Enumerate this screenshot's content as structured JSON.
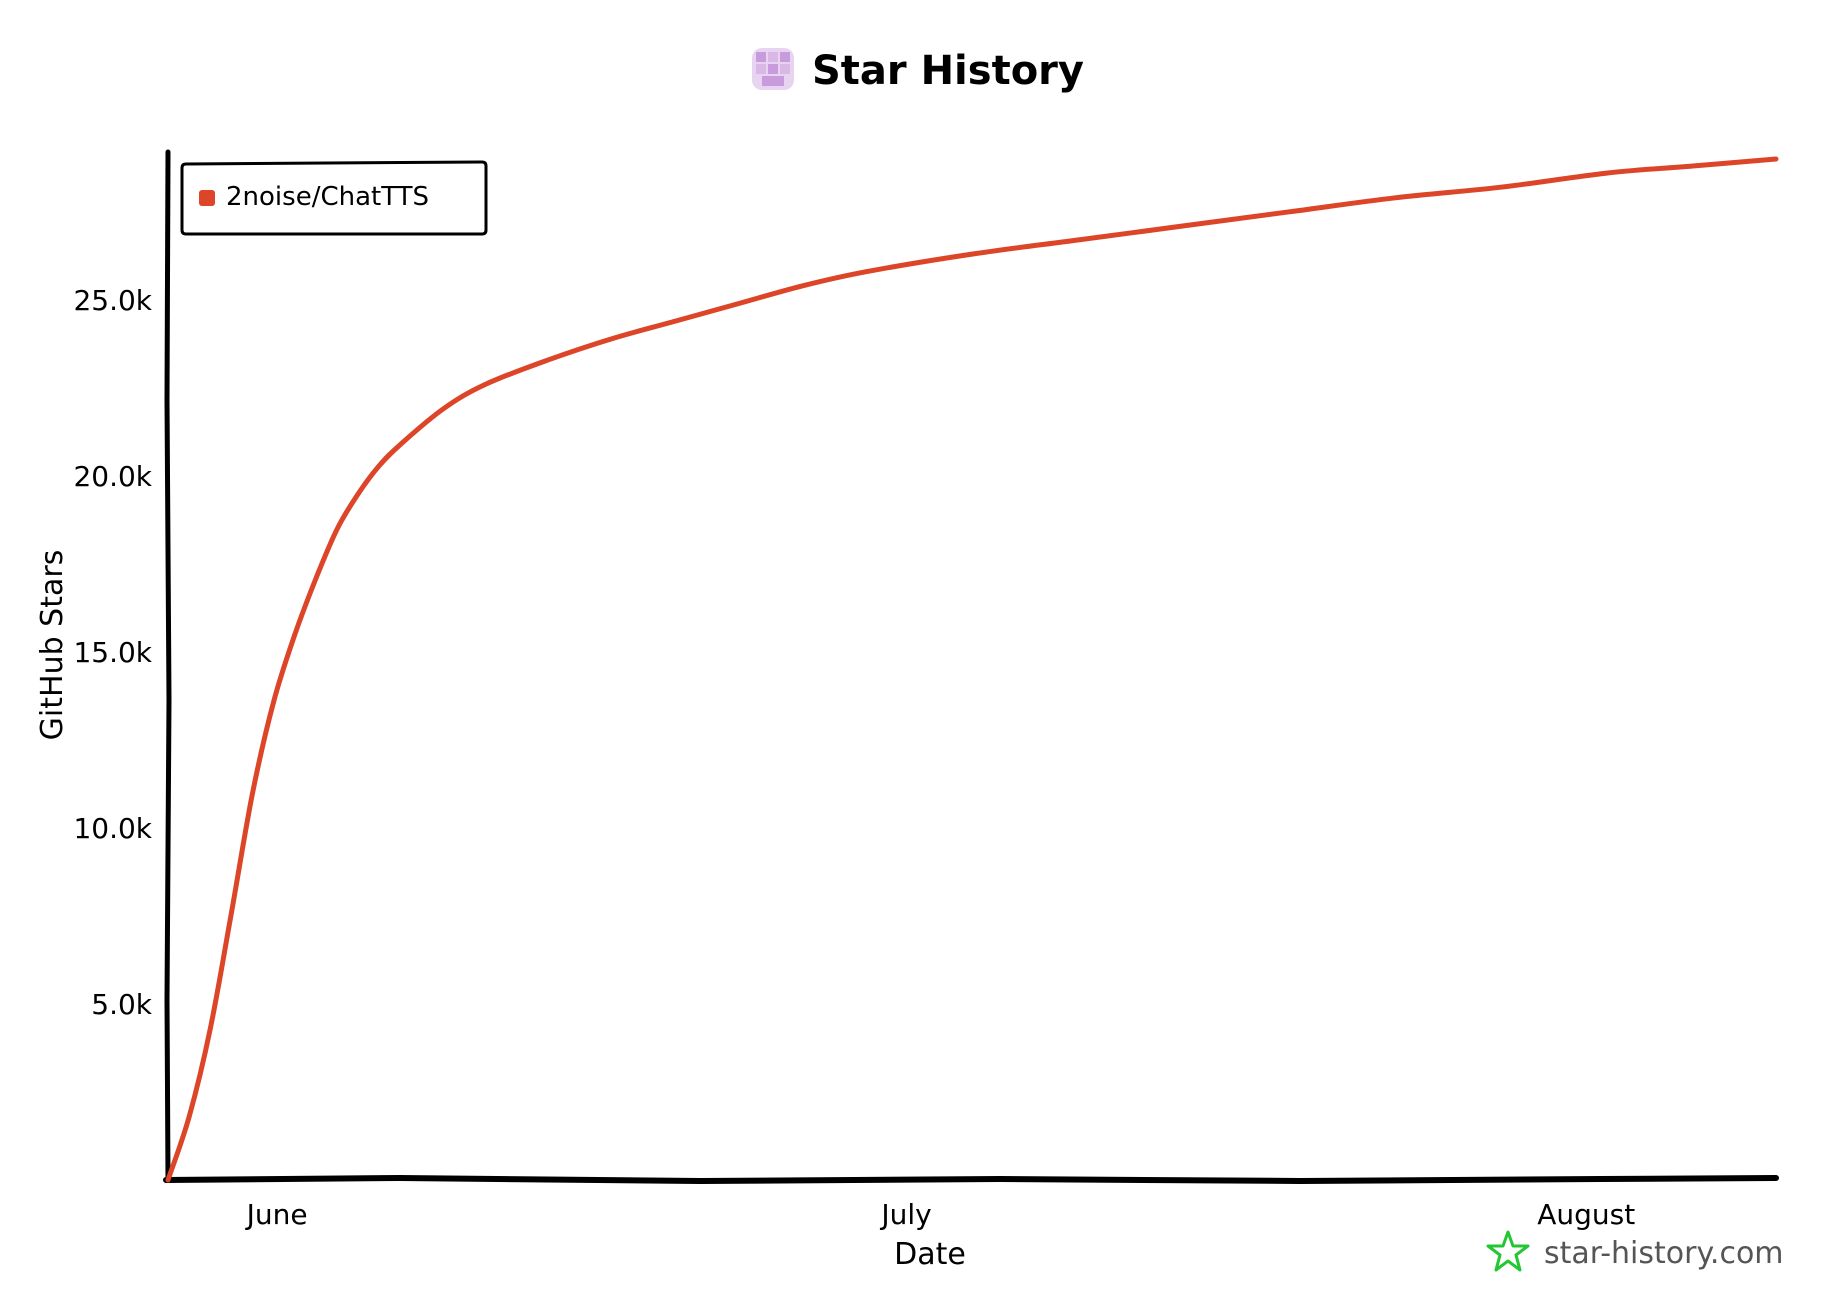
{
  "chart_data": {
    "type": "line",
    "title": "Star History",
    "xlabel": "Date",
    "ylabel": "GitHub Stars",
    "x_ticks": [
      "June",
      "July",
      "August"
    ],
    "y_ticks": [
      "5.0k",
      "10.0k",
      "15.0k",
      "20.0k",
      "25.0k"
    ],
    "y_tick_values": [
      5000,
      10000,
      15000,
      20000,
      25000
    ],
    "ylim": [
      0,
      29200
    ],
    "xlim": [
      "2024-05-28",
      "2024-08-12"
    ],
    "legend_position": "top-left",
    "grid": false,
    "series": [
      {
        "name": "2noise/ChatTTS",
        "color": "#dd4528",
        "points": [
          [
            "2024-05-28",
            0
          ],
          [
            "2024-05-29",
            1800
          ],
          [
            "2024-05-30",
            4300
          ],
          [
            "2024-05-31",
            7600
          ],
          [
            "2024-06-01",
            11000
          ],
          [
            "2024-06-02",
            13600
          ],
          [
            "2024-06-03",
            15500
          ],
          [
            "2024-06-04",
            17100
          ],
          [
            "2024-06-05",
            18500
          ],
          [
            "2024-06-06",
            19500
          ],
          [
            "2024-06-07",
            20300
          ],
          [
            "2024-06-08",
            20900
          ],
          [
            "2024-06-10",
            21900
          ],
          [
            "2024-06-12",
            22600
          ],
          [
            "2024-06-15",
            23300
          ],
          [
            "2024-06-18",
            23900
          ],
          [
            "2024-06-21",
            24400
          ],
          [
            "2024-06-24",
            24900
          ],
          [
            "2024-06-27",
            25400
          ],
          [
            "2024-06-30",
            25800
          ],
          [
            "2024-07-05",
            26300
          ],
          [
            "2024-07-10",
            26700
          ],
          [
            "2024-07-15",
            27100
          ],
          [
            "2024-07-20",
            27500
          ],
          [
            "2024-07-25",
            27900
          ],
          [
            "2024-07-30",
            28200
          ],
          [
            "2024-08-04",
            28600
          ],
          [
            "2024-08-08",
            28800
          ],
          [
            "2024-08-12",
            29000
          ]
        ]
      }
    ]
  },
  "watermark": {
    "text": "star-history.com",
    "icon": "star-outline-icon",
    "icon_color": "#22c732"
  },
  "logo": {
    "icon": "star-history-logo-icon",
    "colors": [
      "#c79bdc",
      "#e8d3f0"
    ]
  }
}
